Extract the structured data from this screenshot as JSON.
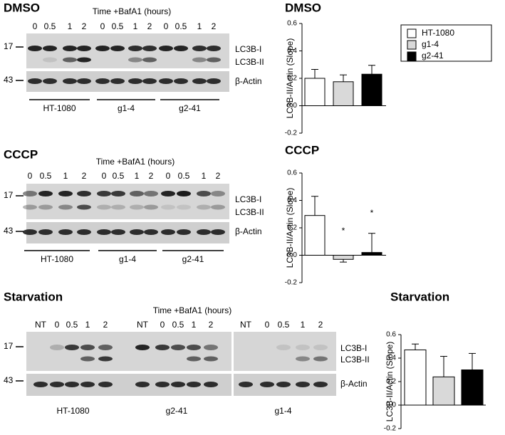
{
  "chart_data": [
    {
      "type": "bar",
      "title": "DMSO",
      "ylabel": "LC3B-II/Actin (Slope)",
      "categories": [
        "HT-1080",
        "g1-4",
        "g2-41"
      ],
      "values": [
        0.2,
        0.175,
        0.23
      ],
      "errors": [
        0.065,
        0.05,
        0.065
      ],
      "colors": [
        "#ffffff",
        "#d9d9d9",
        "#000000"
      ],
      "ylim": [
        -0.2,
        0.6
      ],
      "yticks": [
        {
          "value": -0.2,
          "label": "-0.2"
        },
        {
          "value": 0,
          "label": "0.0"
        },
        0.2,
        0.4,
        0.6
      ],
      "legend": "top-right"
    },
    {
      "type": "bar",
      "title": "CCCP",
      "ylabel": "LC3B-II/Actin (Slope)",
      "categories": [
        "HT-1080",
        "g1-4",
        "g2-41"
      ],
      "values": [
        0.29,
        -0.03,
        0.02
      ],
      "errors": [
        0.14,
        0.02,
        0.14
      ],
      "colors": [
        "#ffffff",
        "#d9d9d9",
        "#000000"
      ],
      "ylim": [
        -0.2,
        0.6
      ],
      "yticks": [
        {
          "value": -0.2,
          "label": "-0.2"
        },
        {
          "value": 0,
          "label": "0.0"
        },
        0.2,
        0.4,
        0.6
      ],
      "annotations": [
        "*",
        "*"
      ]
    },
    {
      "type": "bar",
      "title": "Starvation",
      "ylabel": "LC3B-II/Actin (Slope)",
      "categories": [
        "HT-1080",
        "g1-4",
        "g2-41"
      ],
      "values": [
        0.47,
        0.24,
        0.3
      ],
      "errors": [
        0.05,
        0.175,
        0.14
      ],
      "colors": [
        "#ffffff",
        "#d9d9d9",
        "#000000"
      ],
      "ylim": [
        -0.2,
        0.6
      ],
      "yticks": [
        {
          "value": -0.2,
          "label": "-0.2"
        },
        {
          "value": 0,
          "label": "0.0"
        },
        0.2,
        0.4,
        0.6
      ]
    }
  ],
  "blots": [
    {
      "title": "DMSO",
      "time_label": "Time +BafA1 (hours)",
      "lanes": [
        "0",
        "0.5",
        "1",
        "2",
        "0",
        "0.5",
        "1",
        "2",
        "0",
        "0.5",
        "1",
        "2"
      ],
      "markers": [
        "17",
        "43"
      ],
      "bands": [
        "LC3B-I",
        "LC3B-II",
        "β-Actin"
      ],
      "groups": [
        "HT-1080",
        "g1-4",
        "g2-41"
      ]
    },
    {
      "title": "CCCP",
      "time_label": "Time +BafA1 (hours)",
      "lanes": [
        "0",
        "0.5",
        "1",
        "2",
        "0",
        "0.5",
        "1",
        "2",
        "0",
        "0.5",
        "1",
        "2"
      ],
      "markers": [
        "17",
        "43"
      ],
      "bands": [
        "LC3B-I",
        "LC3B-II",
        "β-Actin"
      ],
      "groups": [
        "HT-1080",
        "g1-4",
        "g2-41"
      ]
    },
    {
      "title": "Starvation",
      "time_label": "Time +BafA1 (hours)",
      "lanes": [
        "NT",
        "0",
        "0.5",
        "1",
        "2",
        "NT",
        "0",
        "0.5",
        "1",
        "2",
        "NT",
        "0",
        "0.5",
        "1",
        "2"
      ],
      "markers": [
        "17",
        "43"
      ],
      "bands": [
        "LC3B-I",
        "LC3B-II",
        "β-Actin"
      ],
      "groups": [
        "HT-1080",
        "g2-41",
        "g1-4"
      ]
    }
  ]
}
